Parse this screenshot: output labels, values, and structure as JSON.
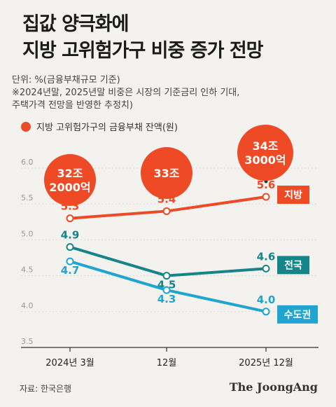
{
  "title_lines": [
    "집값 양극화에",
    "지방 고위험가구 비중 증가 전망"
  ],
  "notes": [
    "단위: %(금융부채규모 기준)",
    "※2024년말, 2025년말 비중은 시장의 기준금리 인하 기대,",
    "주택가격 전망을 반영한 추정치)"
  ],
  "legend_label": "지방 고위험가구의 금융부채 잔액(원)",
  "source": "자료: 한국은행",
  "brand": "The JoongAng",
  "colors": {
    "지방": "#ee4a25",
    "전국": "#158589",
    "수도권": "#1fa5d0",
    "bubble": "#ee4a25",
    "axis": "#333333",
    "tick": "#999999"
  },
  "chart_data": {
    "type": "line",
    "x": [
      "2024년 3월",
      "12월",
      "2025년 12월"
    ],
    "ylim": [
      3.5,
      6.0
    ],
    "yticks": [
      "3.5",
      "4.0",
      "4.5",
      "5.0",
      "5.5",
      "6.0"
    ],
    "series": [
      {
        "name": "지방",
        "values": [
          5.3,
          5.4,
          5.6
        ],
        "labels": [
          "5.3",
          "5.4",
          "5.6"
        ]
      },
      {
        "name": "전국",
        "values": [
          4.9,
          4.5,
          4.6
        ],
        "labels": [
          "4.9",
          "4.5",
          "4.6"
        ]
      },
      {
        "name": "수도권",
        "values": [
          4.7,
          4.3,
          4.0
        ],
        "labels": [
          "4.7",
          "4.3",
          "4.0"
        ]
      }
    ],
    "annotations": [
      {
        "lines": [
          "32조",
          "2000억"
        ]
      },
      {
        "lines": [
          "33조"
        ]
      },
      {
        "lines": [
          "34조",
          "3000억"
        ]
      }
    ]
  }
}
